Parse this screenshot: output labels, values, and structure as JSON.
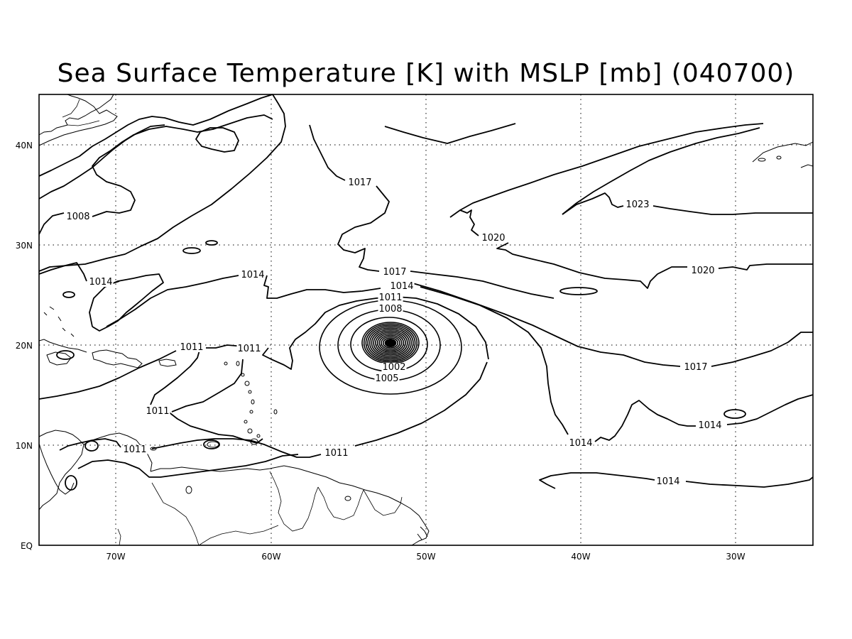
{
  "title": "Sea Surface Temperature [K] with MSLP [mb] (040700)",
  "x_ticks": [
    "70W",
    "60W",
    "50W",
    "40W",
    "30W"
  ],
  "y_ticks": [
    "EQ",
    "10N",
    "20N",
    "30N",
    "40N"
  ],
  "contour_labels": {
    "l1008": "1008",
    "l1014a": "1014",
    "l1014b": "1014",
    "l1017a": "1017",
    "l1011a": "1011",
    "l1011b": "1011",
    "l1011c": "1011",
    "l1011d": "1011",
    "l1011e": "1011",
    "l1017b": "1017",
    "l1014c": "1014",
    "l1011f": "1011",
    "l1008b": "1008",
    "l1002": "1002",
    "l1005": "1005",
    "l1020a": "1020",
    "l1023": "1023",
    "l1020b": "1020",
    "l1017c": "1017",
    "l1014d": "1014",
    "l1014e": "1014",
    "l1014f": "1014"
  },
  "map": {
    "lon_range": [
      "75W",
      "25W"
    ],
    "lat_range": [
      "EQ",
      "45N"
    ],
    "low_center": [
      "52W",
      "20N"
    ]
  }
}
